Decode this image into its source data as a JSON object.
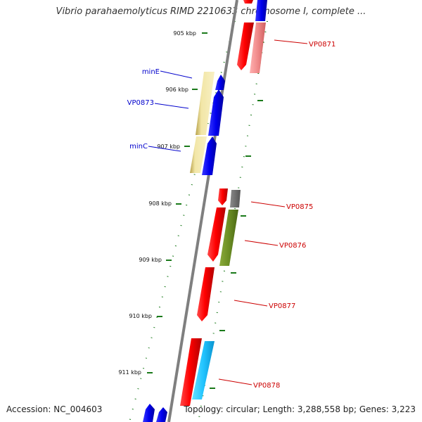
{
  "title": "Vibrio parahaemolyticus RIMD 2210633 chromosome I, complete ...",
  "footer": {
    "accession": "Accession: NC_004603",
    "stats": "Topology: circular; Length: 3,288,558 bp; Genes: 3,223"
  },
  "colors": {
    "backbone": "#7f7f7f",
    "ticks": "#1a7a1a",
    "blue_label": "#0000cc",
    "red_label": "#cc0000"
  },
  "ticks": [
    {
      "kbp": 905,
      "label": "905 kbp"
    },
    {
      "kbp": 906,
      "label": "906 kbp"
    },
    {
      "kbp": 907,
      "label": "907 kbp"
    },
    {
      "kbp": 908,
      "label": "908 kbp"
    },
    {
      "kbp": 909,
      "label": "909 kbp"
    },
    {
      "kbp": 910,
      "label": "910 kbp"
    },
    {
      "kbp": 911,
      "label": "911 kbp"
    }
  ],
  "gene_labels": [
    {
      "text": "minE",
      "color": "blue"
    },
    {
      "text": "VP0873",
      "color": "blue"
    },
    {
      "text": "minC",
      "color": "blue"
    },
    {
      "text": "VP0871",
      "color": "red"
    },
    {
      "text": "VP0875",
      "color": "red"
    },
    {
      "text": "VP0876",
      "color": "red"
    },
    {
      "text": "VP0877",
      "color": "red"
    },
    {
      "text": "VP0878",
      "color": "red"
    }
  ]
}
